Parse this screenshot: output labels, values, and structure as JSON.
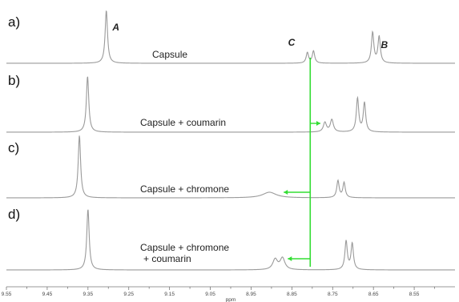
{
  "chart_data": {
    "type": "line",
    "title": "",
    "xlabel": "ppm",
    "ylabel": "",
    "x_reversed": true,
    "xlim": [
      8.45,
      9.55
    ],
    "x_ticks": [
      "9.55",
      "9.50",
      "9.45",
      "9.40",
      "9.35",
      "9.30",
      "9.25",
      "9.20",
      "9.15",
      "9.10",
      "9.05",
      "9.00",
      "8.95",
      "8.90",
      "8.85",
      "8.80",
      "8.75",
      "8.70",
      "8.65",
      "8.60",
      "8.55",
      "8.50"
    ],
    "x_tick_labels_shown": [
      "9.55",
      "9.45",
      "9.35",
      "9.25",
      "9.15",
      "9.05",
      "8.95",
      "8.85",
      "8.75",
      "8.65",
      "8.55"
    ],
    "grid": false,
    "legend": "none",
    "colors": {
      "trace": "#9a9a9a",
      "arrow": "#33dd33",
      "text": "#222222"
    },
    "peak_labels": [
      {
        "text": "A",
        "x": 9.29
      },
      {
        "text": "C",
        "x": 8.82
      },
      {
        "text": "B",
        "x": 8.62
      }
    ],
    "series": [
      {
        "panel": "a)",
        "name": "Capsule",
        "peaks": [
          {
            "x": 9.305,
            "height": 1.0,
            "width": 0.0035
          },
          {
            "x": 8.812,
            "height": 0.2,
            "width": 0.0035
          },
          {
            "x": 8.797,
            "height": 0.23,
            "width": 0.0035
          },
          {
            "x": 8.652,
            "height": 0.58,
            "width": 0.0035
          },
          {
            "x": 8.636,
            "height": 0.5,
            "width": 0.0035
          }
        ]
      },
      {
        "panel": "b)",
        "name": "Capsule + coumarin",
        "peaks": [
          {
            "x": 9.351,
            "height": 1.0,
            "width": 0.0035
          },
          {
            "x": 8.769,
            "height": 0.17,
            "width": 0.0045
          },
          {
            "x": 8.752,
            "height": 0.22,
            "width": 0.0045
          },
          {
            "x": 8.689,
            "height": 0.6,
            "width": 0.0035
          },
          {
            "x": 8.672,
            "height": 0.52,
            "width": 0.0035
          }
        ]
      },
      {
        "panel": "c)",
        "name": "Capsule + chromone",
        "peaks": [
          {
            "x": 9.371,
            "height": 1.0,
            "width": 0.0035
          },
          {
            "x": 8.905,
            "height": 0.09,
            "width": 0.02
          },
          {
            "x": 8.737,
            "height": 0.27,
            "width": 0.0035
          },
          {
            "x": 8.722,
            "height": 0.24,
            "width": 0.0035
          }
        ]
      },
      {
        "panel": "d)",
        "name": "Capsule + chromone + coumarin",
        "label_lines": [
          "Capsule + chromone",
          "+ coumarin"
        ],
        "peaks": [
          {
            "x": 9.35,
            "height": 1.0,
            "width": 0.0035
          },
          {
            "x": 8.891,
            "height": 0.17,
            "width": 0.007
          },
          {
            "x": 8.873,
            "height": 0.19,
            "width": 0.007
          },
          {
            "x": 8.717,
            "height": 0.47,
            "width": 0.0035
          },
          {
            "x": 8.702,
            "height": 0.43,
            "width": 0.0035
          }
        ]
      }
    ],
    "arrows": [
      {
        "panel": "b)",
        "from": 8.805,
        "to": 8.78
      },
      {
        "panel": "c)",
        "from": 8.805,
        "to": 8.87
      },
      {
        "panel": "d)",
        "from": 8.805,
        "to": 8.86
      }
    ],
    "reference_line_x": 8.805
  }
}
